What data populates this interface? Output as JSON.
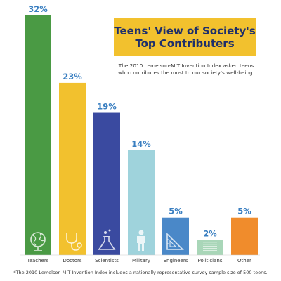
{
  "chart_data": {
    "type": "bar",
    "title_lines": [
      "Teens' View of Society's",
      "Top Contributers"
    ],
    "subtitle_lines": [
      "The 2010 Lemelson-MIT Invention Index asked teens",
      "who contributes the most to our society's well-being."
    ],
    "categories": [
      "Teachers",
      "Doctors",
      "Scientists",
      "Military",
      "Engineers",
      "Politicians",
      "Other"
    ],
    "values": [
      32,
      23,
      19,
      14,
      5,
      2,
      5
    ],
    "value_labels": [
      "32%",
      "23%",
      "19%",
      "14%",
      "5%",
      "2%",
      "5%"
    ],
    "colors": [
      "#4a9a44",
      "#f2c12e",
      "#3a4aa0",
      "#9fd3dc",
      "#4a88c8",
      "#a9d6b8",
      "#f08c2c"
    ],
    "label_color": "#3a7fc1",
    "icons": [
      "globe-icon",
      "stethoscope-icon",
      "flask-icon",
      "soldier-icon",
      "ruler-triangle-icon",
      "document-icon",
      ""
    ],
    "ylim": [
      0,
      32
    ],
    "grid": false,
    "footnote": "*The 2010 Lemelson-MIT Invention Index includes a nationally representative survey sample size of 500 teens."
  }
}
